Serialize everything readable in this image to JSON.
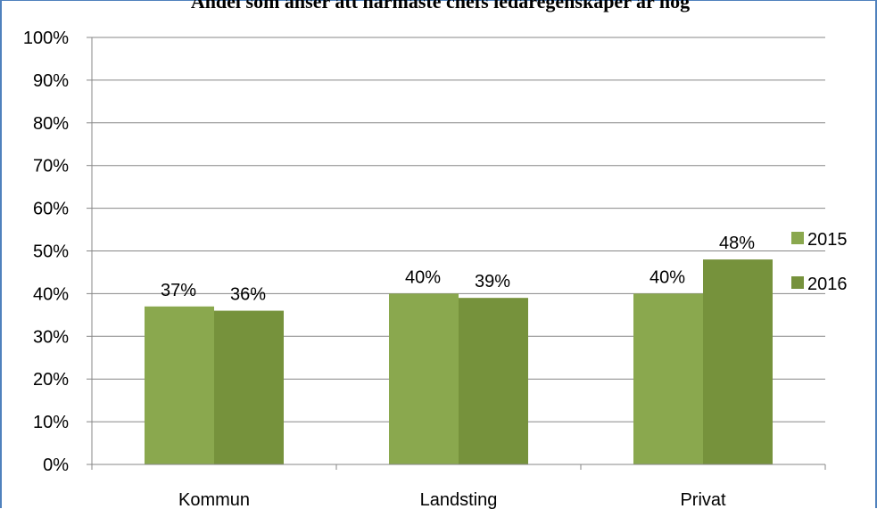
{
  "chart_data": {
    "type": "bar",
    "title": "Andel som anser att närmaste chefs ledaregenskaper är hög",
    "categories": [
      "Kommun",
      "Landsting",
      "Privat"
    ],
    "series": [
      {
        "name": "2015",
        "values": [
          37,
          40,
          40
        ],
        "labels": [
          "37%",
          "40%",
          "40%"
        ],
        "color": "#8aa84e"
      },
      {
        "name": "2016",
        "values": [
          36,
          39,
          48
        ],
        "labels": [
          "36%",
          "39%",
          "48%"
        ],
        "color": "#76923c"
      }
    ],
    "y_ticks": [
      "0%",
      "10%",
      "20%",
      "30%",
      "40%",
      "50%",
      "60%",
      "70%",
      "80%",
      "90%",
      "100%"
    ],
    "ylim": [
      0,
      100
    ],
    "grid": true,
    "legend_position": "right",
    "gridline_color": "#878787",
    "frame_color": "#4f81bd"
  }
}
